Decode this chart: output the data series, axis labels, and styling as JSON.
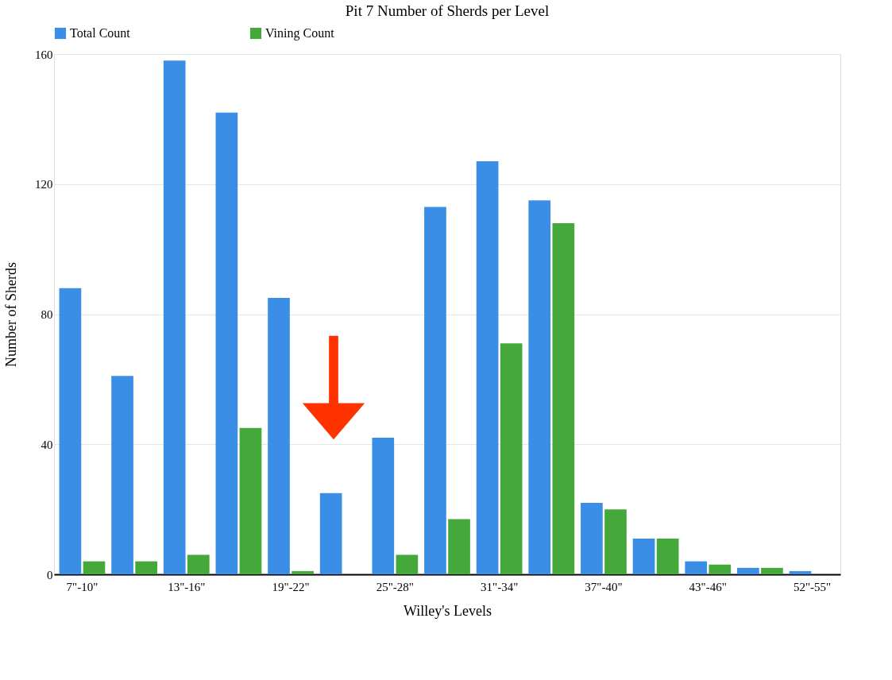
{
  "chart_data": {
    "type": "bar",
    "title": "Pit 7 Number of Sherds per Level",
    "xlabel": "Willey's Levels",
    "ylabel": "Number of Sherds",
    "categories": [
      "7\"-10\"",
      null,
      "13\"-16\"",
      null,
      "19\"-22\"",
      null,
      "25\"-28\"",
      null,
      "31\"-34\"",
      null,
      "37\"-40\"",
      null,
      "43\"-46\"",
      null,
      "52\"-55\""
    ],
    "series": [
      {
        "name": "Total Count",
        "color": "#3a8ee6",
        "values": [
          88,
          61,
          158,
          142,
          85,
          25,
          42,
          113,
          127,
          115,
          22,
          11,
          4,
          2,
          1
        ]
      },
      {
        "name": "Vining Count",
        "color": "#45a83a",
        "values": [
          4,
          4,
          6,
          45,
          1,
          null,
          6,
          17,
          71,
          108,
          20,
          11,
          3,
          2,
          null
        ]
      }
    ],
    "ylim": [
      0,
      160
    ],
    "yticks": [
      0,
      40,
      80,
      120,
      160
    ],
    "grid": "y",
    "legend": "top"
  }
}
